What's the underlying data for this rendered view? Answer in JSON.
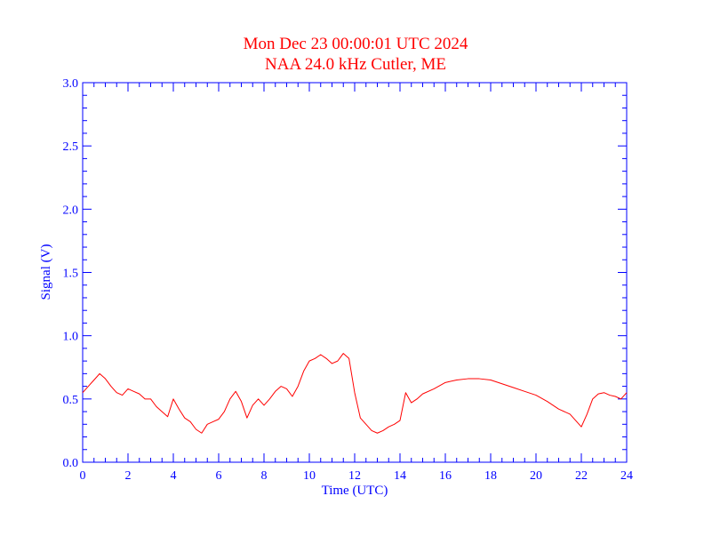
{
  "colors": {
    "title": "#ff0000",
    "axis": "#0000ff",
    "series": "#ff0000",
    "background": "#ffffff"
  },
  "chart_data": {
    "type": "line",
    "title": "Mon Dec 23 00:00:01 UTC 2024",
    "subtitle": "NAA 24.0 kHz Cutler, ME",
    "xlabel": "Time (UTC)",
    "ylabel": "Signal (V)",
    "xlim": [
      0,
      24
    ],
    "ylim": [
      0,
      3
    ],
    "xticks": [
      "0",
      "2",
      "4",
      "6",
      "8",
      "10",
      "12",
      "14",
      "16",
      "18",
      "20",
      "22",
      "24"
    ],
    "yticks": [
      "0.0",
      "0.5",
      "1.0",
      "1.5",
      "2.0",
      "2.5",
      "3.0"
    ],
    "grid": false,
    "series": [
      {
        "x": [
          0.0,
          0.25,
          0.5,
          0.75,
          1.0,
          1.25,
          1.5,
          1.75,
          2.0,
          2.25,
          2.5,
          2.75,
          3.0,
          3.25,
          3.5,
          3.75,
          4.0,
          4.25,
          4.5,
          4.75,
          5.0,
          5.25,
          5.5,
          5.75,
          6.0,
          6.25,
          6.5,
          6.75,
          7.0,
          7.25,
          7.5,
          7.75,
          8.0,
          8.25,
          8.5,
          8.75,
          9.0,
          9.25,
          9.5,
          9.75,
          10.0,
          10.25,
          10.5,
          10.75,
          11.0,
          11.25,
          11.5,
          11.75,
          12.0,
          12.25,
          12.5,
          12.75,
          13.0,
          13.25,
          13.5,
          13.75,
          14.0,
          14.25,
          14.5,
          14.75,
          15.0,
          15.5,
          16.0,
          16.5,
          17.0,
          17.5,
          18.0,
          18.5,
          19.0,
          19.5,
          20.0,
          20.5,
          20.75,
          21.0,
          21.5,
          21.75,
          22.0,
          22.25,
          22.5,
          22.75,
          23.0,
          23.25,
          23.5,
          23.75,
          24.0
        ],
        "y": [
          0.55,
          0.6,
          0.65,
          0.7,
          0.66,
          0.6,
          0.55,
          0.53,
          0.58,
          0.56,
          0.54,
          0.5,
          0.5,
          0.44,
          0.4,
          0.36,
          0.5,
          0.42,
          0.35,
          0.32,
          0.26,
          0.23,
          0.3,
          0.32,
          0.34,
          0.4,
          0.5,
          0.56,
          0.48,
          0.35,
          0.45,
          0.5,
          0.45,
          0.5,
          0.56,
          0.6,
          0.58,
          0.52,
          0.6,
          0.72,
          0.8,
          0.82,
          0.85,
          0.82,
          0.78,
          0.8,
          0.86,
          0.82,
          0.55,
          0.35,
          0.3,
          0.25,
          0.23,
          0.25,
          0.28,
          0.3,
          0.33,
          0.55,
          0.47,
          0.5,
          0.54,
          0.58,
          0.63,
          0.65,
          0.66,
          0.66,
          0.65,
          0.62,
          0.59,
          0.56,
          0.53,
          0.48,
          0.45,
          0.42,
          0.38,
          0.33,
          0.28,
          0.38,
          0.5,
          0.54,
          0.55,
          0.53,
          0.52,
          0.5,
          0.55
        ]
      }
    ]
  }
}
